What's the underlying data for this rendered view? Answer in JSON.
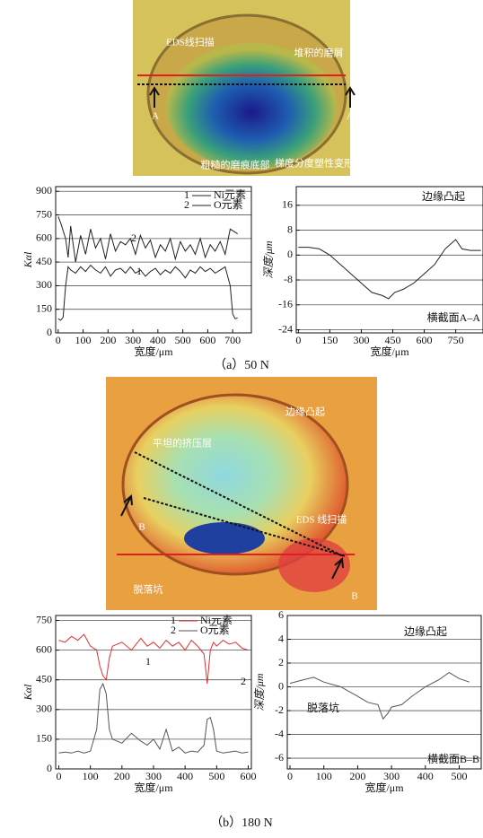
{
  "chart_data": [
    {
      "type": "line",
      "xlabel": "宽度/μm",
      "ylabel": "Kαl",
      "xlim": [
        -10,
        775
      ],
      "ylim": [
        0,
        930
      ],
      "xticks": [
        0,
        100,
        200,
        300,
        400,
        500,
        600,
        700
      ],
      "yticks": [
        0,
        150,
        300,
        450,
        600,
        750,
        900
      ],
      "grid": true,
      "series": [
        {
          "name": "Ni元素",
          "label": "1",
          "color": "#222222",
          "x": [
            0,
            10,
            20,
            30,
            40,
            50,
            70,
            90,
            110,
            130,
            150,
            170,
            190,
            210,
            230,
            250,
            270,
            290,
            310,
            330,
            350,
            370,
            390,
            410,
            430,
            450,
            470,
            490,
            510,
            530,
            550,
            570,
            590,
            610,
            630,
            650,
            670,
            690,
            700,
            710,
            720
          ],
          "values": [
            90,
            80,
            100,
            300,
            420,
            400,
            380,
            420,
            390,
            430,
            400,
            380,
            420,
            360,
            400,
            410,
            380,
            420,
            380,
            400,
            360,
            390,
            410,
            370,
            400,
            380,
            420,
            390,
            350,
            400,
            380,
            420,
            390,
            410,
            380,
            400,
            420,
            300,
            120,
            90,
            95
          ]
        },
        {
          "name": "O元素",
          "label": "2",
          "color": "#222222",
          "x": [
            0,
            10,
            20,
            30,
            40,
            50,
            70,
            90,
            110,
            130,
            150,
            170,
            190,
            210,
            230,
            250,
            270,
            290,
            310,
            330,
            350,
            370,
            390,
            410,
            430,
            450,
            470,
            490,
            510,
            530,
            550,
            570,
            590,
            610,
            630,
            650,
            670,
            690,
            700,
            710,
            720
          ],
          "values": [
            740,
            700,
            650,
            600,
            480,
            680,
            450,
            620,
            500,
            660,
            540,
            600,
            470,
            630,
            520,
            580,
            560,
            600,
            500,
            620,
            540,
            590,
            480,
            560,
            520,
            600,
            470,
            580,
            520,
            560,
            500,
            600,
            480,
            560,
            520,
            580,
            500,
            660,
            650,
            640,
            630
          ]
        }
      ]
    },
    {
      "type": "line",
      "xlabel": "宽度/μm",
      "ylabel": "深度/μm",
      "xlim": [
        -10,
        880
      ],
      "ylim": [
        -25,
        22
      ],
      "xticks": [
        0,
        150,
        300,
        450,
        600,
        750
      ],
      "yticks": [
        -24,
        -16,
        -8,
        0,
        8,
        16
      ],
      "grid": true,
      "annotations": [
        "边缘凸起",
        "横截面A–A"
      ],
      "series": [
        {
          "color": "#222222",
          "x": [
            0,
            50,
            100,
            150,
            200,
            250,
            300,
            350,
            400,
            430,
            460,
            500,
            550,
            600,
            650,
            700,
            750,
            780,
            820,
            870
          ],
          "values": [
            2.5,
            2.5,
            2,
            0,
            -3,
            -6,
            -9,
            -12,
            -13,
            -14,
            -12,
            -11,
            -9,
            -6,
            -3,
            2,
            5,
            2,
            1.5,
            1.5
          ]
        }
      ]
    },
    {
      "type": "line",
      "xlabel": "宽度/μm",
      "ylabel": "Kαl",
      "xlim": [
        -10,
        610
      ],
      "ylim": [
        0,
        775
      ],
      "xticks": [
        0,
        100,
        200,
        300,
        400,
        500,
        600
      ],
      "yticks": [
        0,
        150,
        300,
        450,
        600,
        750
      ],
      "grid": true,
      "series": [
        {
          "name": "Ni元素",
          "label": "1",
          "color": "#e03030",
          "x": [
            0,
            20,
            40,
            60,
            80,
            100,
            120,
            130,
            140,
            150,
            160,
            170,
            200,
            230,
            260,
            280,
            300,
            320,
            340,
            360,
            380,
            400,
            420,
            440,
            460,
            470,
            480,
            490,
            500,
            520,
            540,
            560,
            580,
            600
          ],
          "values": [
            650,
            640,
            670,
            650,
            680,
            620,
            600,
            520,
            470,
            450,
            560,
            620,
            640,
            600,
            660,
            620,
            640,
            610,
            650,
            620,
            640,
            600,
            650,
            620,
            580,
            430,
            600,
            640,
            620,
            650,
            630,
            640,
            610,
            600
          ]
        },
        {
          "name": "O元素",
          "label": "2",
          "color": "#555555",
          "x": [
            0,
            20,
            40,
            60,
            80,
            100,
            120,
            130,
            140,
            150,
            160,
            170,
            200,
            230,
            260,
            280,
            300,
            320,
            340,
            360,
            380,
            400,
            420,
            440,
            460,
            470,
            480,
            490,
            500,
            520,
            540,
            560,
            580,
            600
          ],
          "values": [
            80,
            85,
            80,
            90,
            80,
            90,
            200,
            400,
            430,
            380,
            200,
            150,
            130,
            180,
            140,
            120,
            150,
            100,
            200,
            90,
            110,
            80,
            90,
            85,
            120,
            250,
            260,
            200,
            90,
            80,
            85,
            90,
            80,
            85
          ]
        }
      ]
    },
    {
      "type": "line",
      "xlabel": "宽度/μm",
      "ylabel": "深度/μm",
      "xlim": [
        -8,
        565
      ],
      "ylim": [
        -6.9,
        6
      ],
      "xticks": [
        0,
        100,
        200,
        300,
        400,
        500
      ],
      "yticks": [
        -6,
        -4,
        -2,
        0,
        2,
        4,
        6
      ],
      "grid": true,
      "annotations": [
        "边缘凸起",
        "脱落坑",
        "横截面B–B"
      ],
      "series": [
        {
          "color": "#555555",
          "x": [
            0,
            40,
            70,
            100,
            150,
            200,
            230,
            260,
            275,
            290,
            300,
            330,
            360,
            400,
            440,
            470,
            500,
            530
          ],
          "values": [
            0.3,
            0.6,
            0.8,
            0.4,
            0,
            -0.8,
            -1.3,
            -1.5,
            -2.7,
            -2.2,
            -1.7,
            -1.5,
            -0.8,
            0,
            0.6,
            1.2,
            0.7,
            0.4
          ]
        }
      ]
    }
  ],
  "photos": [
    {
      "labels": [
        "EDS线扫描",
        "堆积的磨屑",
        "A",
        "A",
        "粗糙的磨痕底部",
        "梯度分度塑性变形"
      ]
    },
    {
      "labels": [
        "边缘凸起",
        "平坦的挤压层",
        "B",
        "EDS 线扫描",
        "脱落坑",
        "B"
      ]
    }
  ],
  "captions": [
    "（a）50 N",
    "（b）180 N"
  ]
}
